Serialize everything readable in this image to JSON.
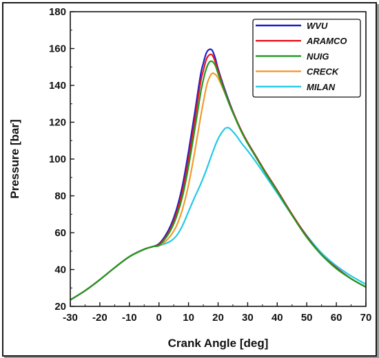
{
  "chart_data": {
    "type": "line",
    "title": "",
    "xlabel": "Crank Angle [deg]",
    "ylabel": "Pressure [bar]",
    "xlim": [
      -30,
      70
    ],
    "ylim": [
      20,
      180
    ],
    "xticks": [
      "-30",
      "-20",
      "-10",
      "0",
      "10",
      "20",
      "30",
      "40",
      "50",
      "60",
      "70"
    ],
    "yticks": [
      "20",
      "40",
      "60",
      "80",
      "100",
      "120",
      "140",
      "160",
      "180"
    ],
    "grid": false,
    "legend_position": "top-right",
    "series": [
      {
        "name": "WVU",
        "color": "#1f1fc8",
        "x": [
          -30,
          -25,
          -20,
          -15,
          -10,
          -5,
          -2,
          0,
          2,
          4,
          6,
          8,
          10,
          12,
          14,
          15,
          16,
          17,
          18,
          19,
          20,
          22,
          24,
          26,
          28,
          30,
          33,
          36,
          40,
          45,
          50,
          55,
          60,
          65,
          70
        ],
        "y": [
          23.5,
          28.5,
          34.5,
          41,
          47,
          51,
          52.5,
          54,
          58,
          64,
          73,
          86,
          104,
          124,
          145,
          152,
          157.5,
          159.5,
          159,
          155,
          149,
          139,
          130,
          122,
          115,
          109,
          101,
          93,
          83,
          70,
          58,
          48,
          41,
          35,
          30.5
        ]
      },
      {
        "name": "ARAMCO",
        "color": "#e8141e",
        "x": [
          -30,
          -25,
          -20,
          -15,
          -10,
          -5,
          -2,
          0,
          2,
          4,
          6,
          8,
          10,
          12,
          14,
          15,
          16,
          17,
          18,
          19,
          20,
          22,
          24,
          26,
          28,
          30,
          33,
          36,
          40,
          45,
          50,
          55,
          60,
          65,
          70
        ],
        "y": [
          23.5,
          28.5,
          34.5,
          41,
          47,
          51,
          52.5,
          53.5,
          57,
          62.5,
          71,
          83,
          100,
          120,
          141,
          148,
          154,
          156.5,
          156.5,
          153,
          148,
          138,
          129.5,
          122,
          115,
          109,
          101,
          93,
          83,
          70,
          58,
          48,
          41,
          35,
          30.5
        ]
      },
      {
        "name": "NUIG",
        "color": "#1f9a1f",
        "x": [
          -30,
          -25,
          -20,
          -15,
          -10,
          -5,
          -2,
          0,
          2,
          4,
          6,
          8,
          10,
          12,
          14,
          15,
          16,
          17,
          18,
          19,
          20,
          22,
          24,
          26,
          28,
          30,
          33,
          36,
          40,
          45,
          50,
          55,
          60,
          65,
          70
        ],
        "y": [
          23.5,
          28.5,
          34.5,
          41,
          47,
          51,
          52.5,
          53,
          56.5,
          61.5,
          69,
          80,
          96,
          115,
          135,
          143,
          149,
          152.5,
          153,
          151,
          146.5,
          137.5,
          129,
          121.5,
          114.5,
          108.5,
          100.5,
          92.5,
          82.5,
          69.5,
          57.5,
          48,
          40.5,
          35,
          30.5
        ]
      },
      {
        "name": "CRECK",
        "color": "#f29a2e",
        "x": [
          -30,
          -25,
          -20,
          -15,
          -10,
          -5,
          -2,
          0,
          2,
          4,
          6,
          8,
          10,
          12,
          14,
          16,
          17,
          18,
          19,
          20,
          22,
          24,
          26,
          28,
          30,
          33,
          36,
          40,
          45,
          50,
          55,
          60,
          65,
          70
        ],
        "y": [
          23.5,
          28.5,
          34.5,
          41,
          47,
          51,
          52.5,
          53,
          55,
          58.5,
          64,
          73,
          86,
          103,
          122,
          139,
          144,
          146.5,
          146,
          144,
          137,
          129,
          121.5,
          114.5,
          108.5,
          100.5,
          92.5,
          82.5,
          69.5,
          57.5,
          48,
          40.5,
          35,
          30.5
        ]
      },
      {
        "name": "MILAN",
        "color": "#22c8e8",
        "x": [
          -30,
          -25,
          -20,
          -15,
          -10,
          -5,
          -2,
          0,
          2,
          4,
          6,
          8,
          10,
          12,
          14,
          16,
          18,
          20,
          22,
          23,
          24,
          26,
          28,
          30,
          33,
          36,
          40,
          45,
          50,
          55,
          60,
          65,
          70
        ],
        "y": [
          23.5,
          28.5,
          34.5,
          41,
          47,
          51,
          52.5,
          53,
          54,
          55.5,
          58.5,
          64,
          71.5,
          79,
          86,
          94,
          103,
          111,
          116,
          117,
          116.5,
          113,
          108.5,
          104.5,
          98,
          91,
          81.5,
          69.5,
          58.5,
          49,
          42,
          36.5,
          32
        ]
      }
    ]
  }
}
